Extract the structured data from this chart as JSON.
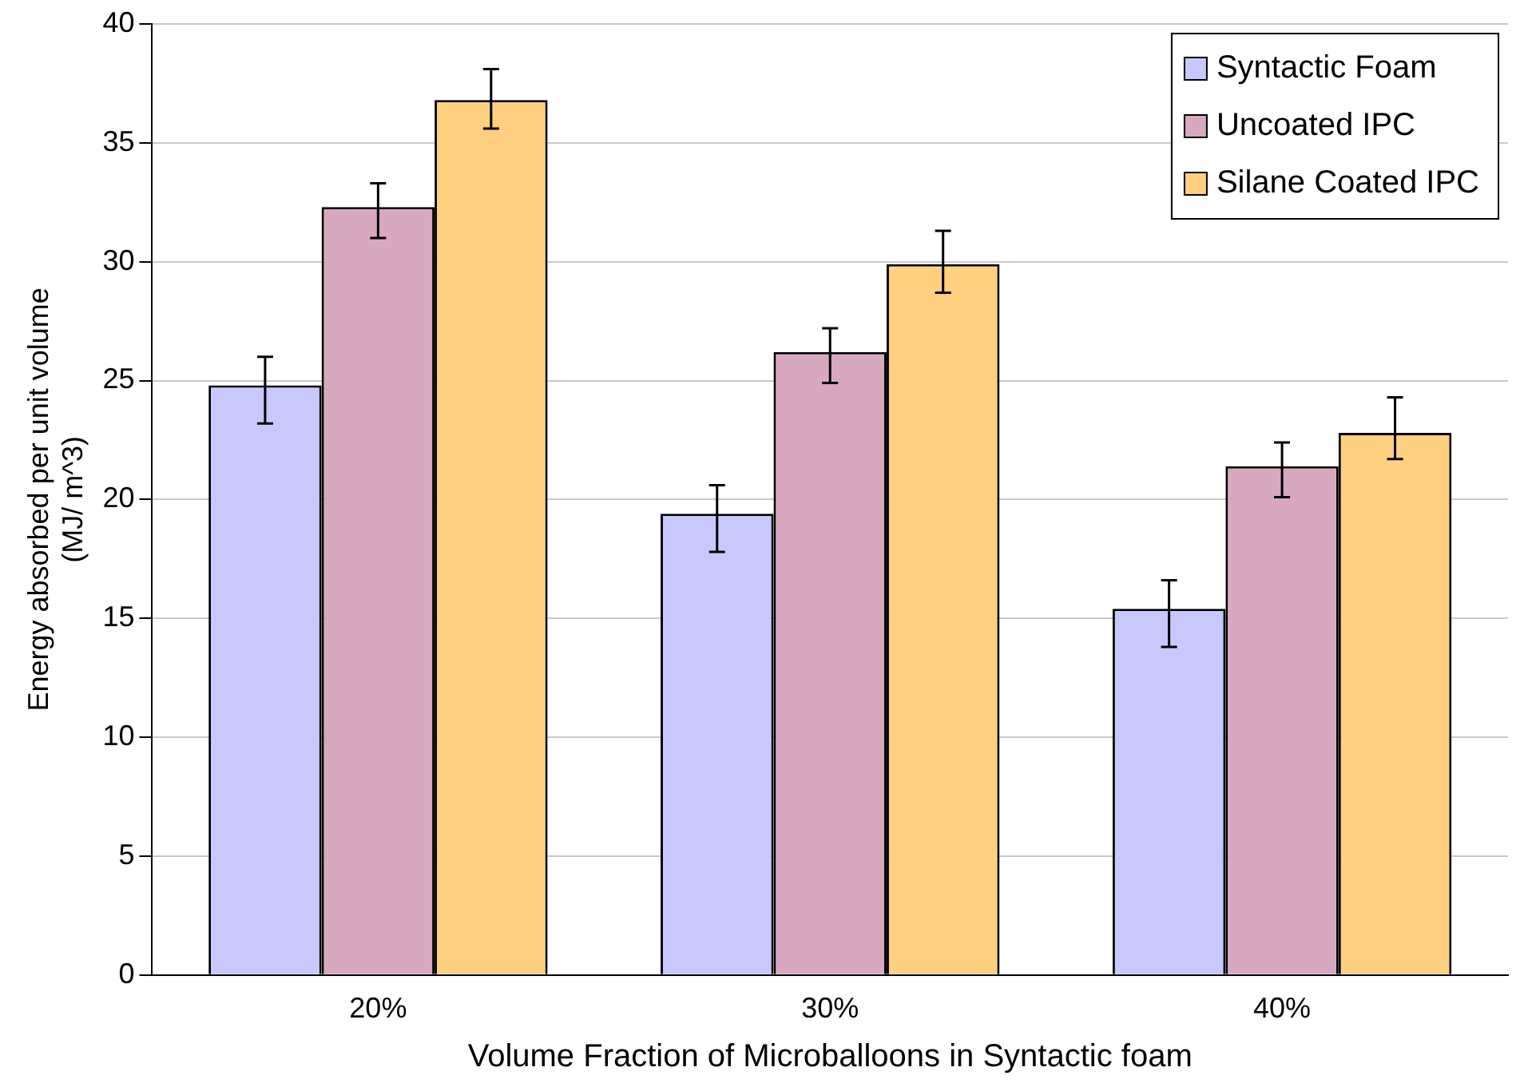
{
  "chart_data": {
    "type": "bar",
    "xlabel": "Volume Fraction of Microballoons in Syntactic foam",
    "ylabel": "Energy absorbed per unit volume\n(MJ/ m^3)",
    "categories": [
      "20%",
      "30%",
      "40%"
    ],
    "series": [
      {
        "name": "Syntactic Foam",
        "color": "#c8c8ff",
        "values": [
          24.8,
          19.4,
          15.4
        ],
        "errors": [
          [
            23.2,
            26.0
          ],
          [
            17.8,
            20.6
          ],
          [
            13.8,
            16.6
          ]
        ]
      },
      {
        "name": "Uncoated IPC",
        "color": "#d8a8c0",
        "values": [
          32.3,
          26.2,
          21.4
        ],
        "errors": [
          [
            31.0,
            33.3
          ],
          [
            24.9,
            27.2
          ],
          [
            20.1,
            22.4
          ]
        ]
      },
      {
        "name": "Silane Coated IPC",
        "color": "#ffd080",
        "values": [
          36.8,
          29.9,
          22.8
        ],
        "errors": [
          [
            35.6,
            38.1
          ],
          [
            28.7,
            31.3
          ],
          [
            21.7,
            24.3
          ]
        ]
      }
    ],
    "ylim": [
      0,
      40
    ],
    "yticks": [
      0,
      5,
      10,
      15,
      20,
      25,
      30,
      35,
      40
    ],
    "grid": "y",
    "legend": "top right"
  }
}
